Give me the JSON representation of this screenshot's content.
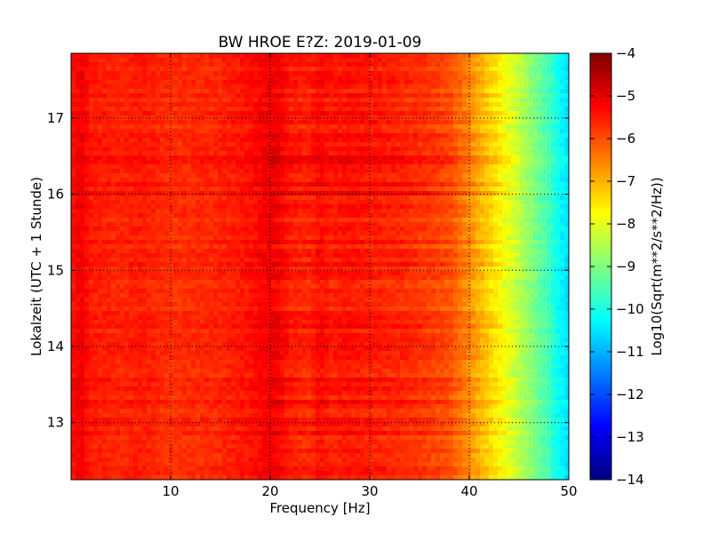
{
  "chart_data": {
    "type": "heatmap",
    "title": "BW HROE E?Z: 2019-01-09",
    "xlabel": "Frequency [Hz]",
    "ylabel": "Lokalzeit (UTC + 1 Stunde)",
    "xlim": [
      0,
      50
    ],
    "ylim": [
      17.85,
      12.25
    ],
    "x_ticks": [
      10,
      20,
      30,
      40,
      50
    ],
    "x_tick_labels": [
      "10",
      "20",
      "30",
      "40",
      "50"
    ],
    "y_ticks": [
      13,
      14,
      15,
      16,
      17
    ],
    "y_tick_labels": [
      "13",
      "14",
      "15",
      "16",
      "17"
    ],
    "grid": true,
    "colormap": "jet",
    "colorbar": {
      "label": "Log10(Sqrt(m**2/s**2/Hz))",
      "range": [
        -14,
        -4
      ],
      "ticks": [
        -4,
        -5,
        -6,
        -7,
        -8,
        -9,
        -10,
        -11,
        -12,
        -13,
        -14
      ],
      "tick_labels": [
        "−4",
        "−5",
        "−6",
        "−7",
        "−8",
        "−9",
        "−10",
        "−11",
        "−12",
        "−13",
        "−14"
      ]
    },
    "spectrum_profile": {
      "frequency_hz": [
        0,
        1,
        2,
        5,
        7,
        10,
        15,
        18,
        20,
        21,
        22,
        24,
        25,
        26,
        28,
        30,
        33,
        36,
        38,
        40,
        42,
        44,
        46,
        48,
        49,
        50
      ],
      "log10_amplitude": [
        -5.4,
        -5.1,
        -5.5,
        -5.6,
        -5.5,
        -5.7,
        -5.6,
        -5.4,
        -5.1,
        -5.2,
        -5.5,
        -5.6,
        -5.3,
        -5.5,
        -5.4,
        -5.5,
        -5.6,
        -5.8,
        -6.0,
        -6.6,
        -7.3,
        -8.0,
        -8.8,
        -9.6,
        -10.2,
        -10.6
      ]
    },
    "colors": {
      "jet": [
        "#00007f",
        "#0000ff",
        "#007fff",
        "#00ffff",
        "#7fff7f",
        "#ffff00",
        "#ff7f00",
        "#ff0000",
        "#7f0000"
      ]
    }
  }
}
